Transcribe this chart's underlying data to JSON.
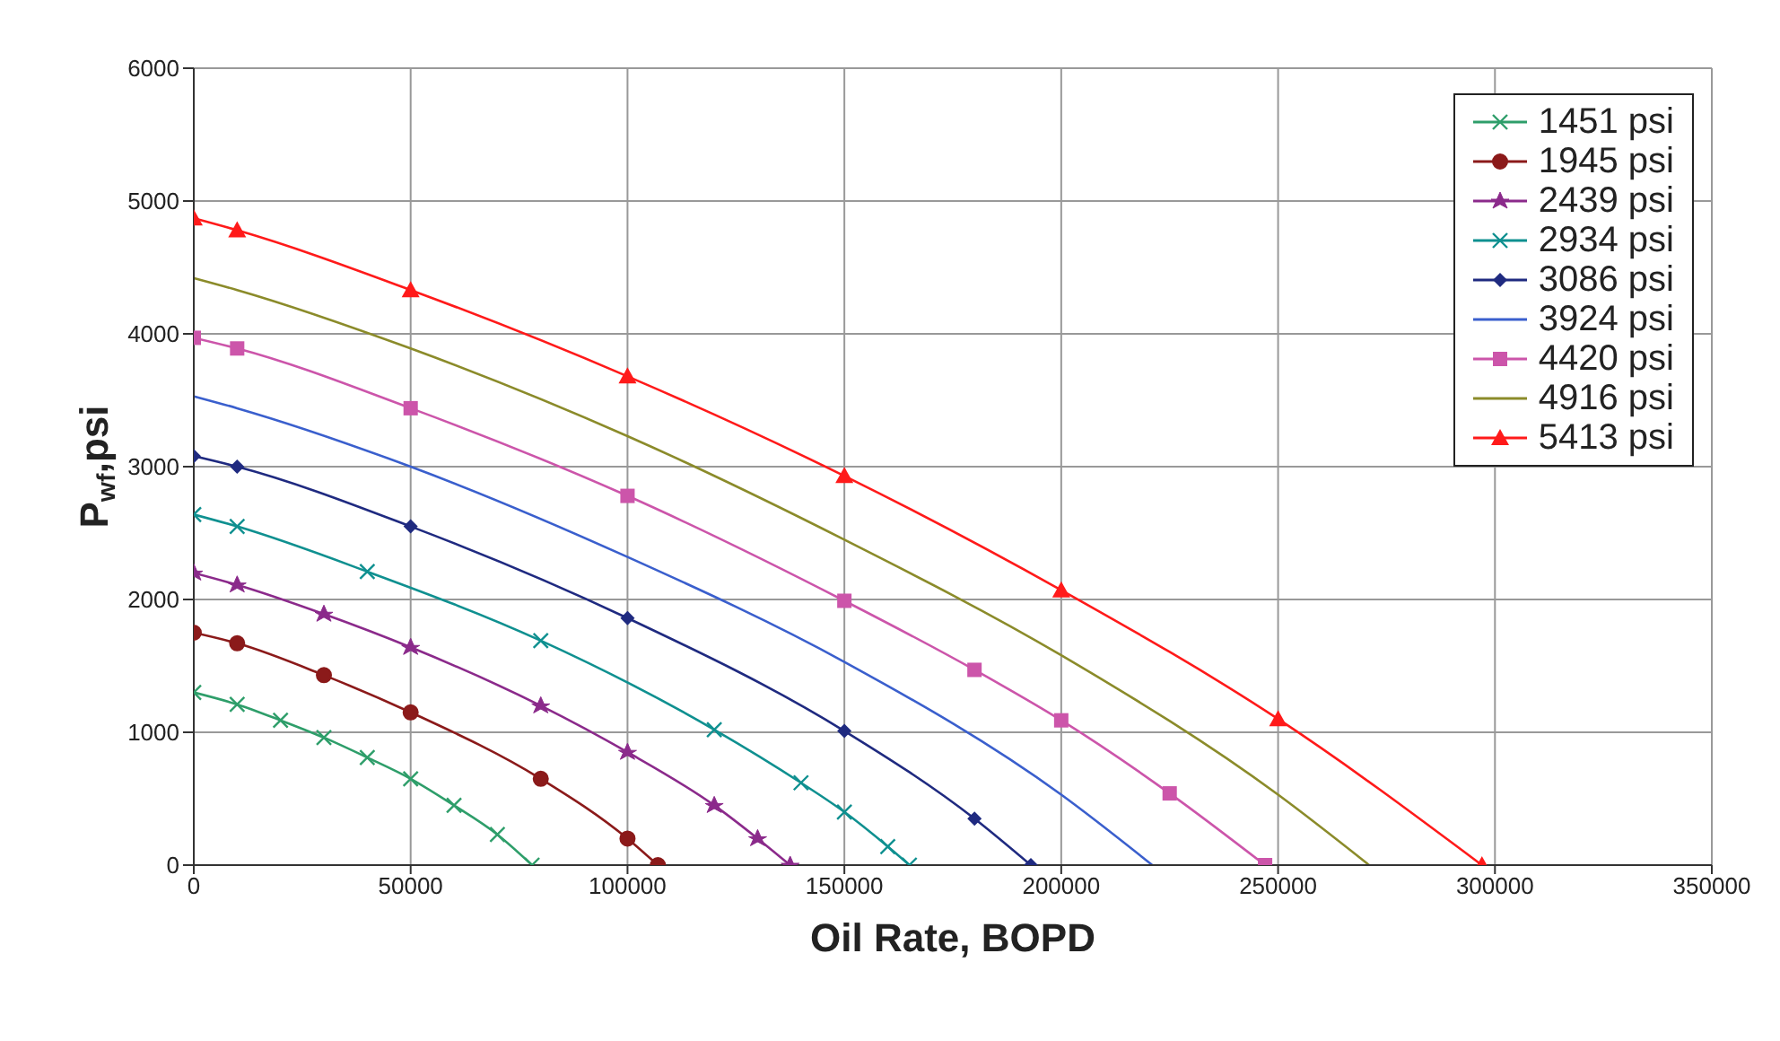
{
  "chart_data": {
    "type": "line",
    "xlabel": "Oil Rate, BOPD",
    "ylabel": "P$_{wf}$,psi",
    "xlim": [
      0,
      350000
    ],
    "xticks": [
      0,
      50000,
      100000,
      150000,
      200000,
      250000,
      300000,
      350000
    ],
    "ylim": [
      0,
      6000
    ],
    "yticks": [
      0,
      1000,
      2000,
      3000,
      4000,
      5000,
      6000
    ],
    "grid": true,
    "legend": "top right",
    "line_style": "solid",
    "series": [
      {
        "name": "1451 psi",
        "color": "#2e9e6a",
        "marker": "cross",
        "x": [
          0,
          10000,
          20000,
          30000,
          40000,
          50000,
          60000,
          70000,
          78000
        ],
        "values": [
          1300,
          1210,
          1090,
          960,
          810,
          650,
          450,
          230,
          0
        ]
      },
      {
        "name": "1945 psi",
        "color": "#8b1a1a",
        "marker": "circle",
        "x": [
          0,
          10000,
          30000,
          50000,
          80000,
          100000,
          107000
        ],
        "values": [
          1750,
          1670,
          1430,
          1150,
          650,
          200,
          0
        ]
      },
      {
        "name": "2439 psi",
        "color": "#8b2a8b",
        "marker": "star",
        "x": [
          0,
          10000,
          30000,
          50000,
          80000,
          100000,
          120000,
          130000,
          137500
        ],
        "values": [
          2200,
          2110,
          1890,
          1640,
          1200,
          850,
          450,
          200,
          0
        ]
      },
      {
        "name": "2934 psi",
        "color": "#0f9090",
        "marker": "cross",
        "x": [
          0,
          10000,
          40000,
          80000,
          120000,
          140000,
          150000,
          160000,
          165000
        ],
        "values": [
          2640,
          2550,
          2210,
          1690,
          1020,
          620,
          400,
          140,
          0
        ]
      },
      {
        "name": "3086 psi",
        "color": "#1f2a80",
        "marker": "diamond",
        "x": [
          0,
          10000,
          50000,
          100000,
          150000,
          180000,
          193000
        ],
        "values": [
          3080,
          3000,
          2550,
          1860,
          1010,
          350,
          0
        ]
      },
      {
        "name": "3924 psi",
        "color": "#3a5fcd",
        "marker": "none",
        "x": [
          0,
          10000,
          50000,
          100000,
          150000,
          200000,
          221000
        ],
        "values": [
          3530,
          3440,
          3000,
          2320,
          1530,
          530,
          0
        ]
      },
      {
        "name": "4420 psi",
        "color": "#cc55aa",
        "marker": "square",
        "x": [
          0,
          10000,
          50000,
          100000,
          150000,
          180000,
          200000,
          225000,
          247000
        ],
        "values": [
          3970,
          3890,
          3440,
          2780,
          1990,
          1470,
          1090,
          540,
          0
        ]
      },
      {
        "name": "4916 psi",
        "color": "#8b8b2a",
        "marker": "none",
        "x": [
          0,
          10000,
          50000,
          100000,
          150000,
          200000,
          250000,
          271000
        ],
        "values": [
          4420,
          4330,
          3890,
          3230,
          2450,
          1580,
          530,
          0
        ]
      },
      {
        "name": "5413 psi",
        "color": "#ff1a1a",
        "marker": "triangle",
        "x": [
          0,
          10000,
          50000,
          100000,
          150000,
          200000,
          250000,
          297000
        ],
        "values": [
          4870,
          4780,
          4330,
          3680,
          2930,
          2070,
          1100,
          0
        ]
      }
    ]
  }
}
